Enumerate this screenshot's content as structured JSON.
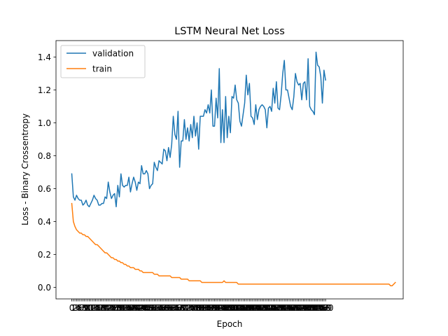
{
  "chart_data": {
    "type": "line",
    "title": "LSTM Neural Net Loss",
    "xlabel": "Epoch",
    "ylabel": "Loss - Binary Crossentropy",
    "xlim": [
      -9.95,
      208.95
    ],
    "ylim": [
      -0.07,
      1.5
    ],
    "yticks": [
      0.0,
      0.2,
      0.4,
      0.6,
      0.8,
      1.0,
      1.2,
      1.4
    ],
    "xticks_note": "one tick per epoch 0-199; labels overlap",
    "grid": false,
    "legend_position": "upper-left",
    "series": [
      {
        "name": "validation",
        "color": "#1f77b4",
        "values": [
          0.69,
          0.55,
          0.53,
          0.56,
          0.54,
          0.53,
          0.53,
          0.5,
          0.51,
          0.53,
          0.5,
          0.49,
          0.51,
          0.53,
          0.56,
          0.54,
          0.53,
          0.5,
          0.5,
          0.51,
          0.51,
          0.55,
          0.54,
          0.64,
          0.58,
          0.54,
          0.56,
          0.57,
          0.49,
          0.62,
          0.55,
          0.69,
          0.62,
          0.61,
          0.62,
          0.62,
          0.67,
          0.58,
          0.63,
          0.67,
          0.64,
          0.59,
          0.64,
          0.63,
          0.74,
          0.69,
          0.69,
          0.71,
          0.69,
          0.6,
          0.62,
          0.63,
          0.76,
          0.73,
          0.71,
          0.77,
          0.76,
          0.75,
          0.84,
          0.83,
          0.77,
          0.85,
          0.79,
          0.87,
          1.04,
          0.93,
          0.9,
          1.07,
          0.73,
          0.89,
          0.89,
          1.02,
          0.9,
          0.97,
          0.89,
          0.99,
          0.91,
          1.04,
          0.92,
          1.0,
          0.84,
          1.04,
          1.04,
          1.04,
          1.08,
          1.06,
          1.11,
          1.06,
          1.2,
          0.98,
          0.98,
          1.15,
          1.03,
          1.33,
          0.88,
          1.08,
          0.88,
          1.16,
          0.91,
          1.04,
          0.94,
          1.16,
          1.15,
          1.23,
          1.14,
          1.12,
          1.01,
          0.98,
          1.05,
          1.12,
          1.29,
          1.17,
          1.24,
          1.04,
          1.03,
          0.99,
          1.11,
          1.02,
          1.08,
          1.1,
          1.11,
          1.1,
          1.08,
          0.97,
          1.09,
          1.1,
          1.07,
          1.21,
          1.12,
          1.25,
          1.09,
          1.08,
          1.17,
          1.3,
          1.38,
          1.2,
          1.2,
          1.15,
          1.1,
          1.08,
          1.16,
          1.3,
          1.25,
          1.23,
          1.24,
          1.14,
          1.24,
          1.25,
          1.14,
          1.39,
          1.1,
          1.08,
          1.07,
          1.05,
          1.43,
          1.35,
          1.34,
          1.28,
          1.12,
          1.32,
          1.26
        ],
        "x_start": 0
      },
      {
        "name": "train",
        "color": "#ff7f0e",
        "values": [
          0.51,
          0.4,
          0.37,
          0.35,
          0.34,
          0.33,
          0.33,
          0.32,
          0.32,
          0.31,
          0.31,
          0.3,
          0.29,
          0.28,
          0.27,
          0.26,
          0.26,
          0.25,
          0.24,
          0.23,
          0.22,
          0.21,
          0.21,
          0.2,
          0.19,
          0.18,
          0.18,
          0.17,
          0.17,
          0.16,
          0.16,
          0.15,
          0.15,
          0.14,
          0.14,
          0.13,
          0.13,
          0.12,
          0.12,
          0.12,
          0.11,
          0.11,
          0.11,
          0.1,
          0.1,
          0.09,
          0.09,
          0.09,
          0.09,
          0.09,
          0.09,
          0.09,
          0.08,
          0.08,
          0.08,
          0.07,
          0.07,
          0.07,
          0.07,
          0.07,
          0.07,
          0.07,
          0.07,
          0.06,
          0.06,
          0.06,
          0.06,
          0.06,
          0.06,
          0.05,
          0.05,
          0.05,
          0.05,
          0.05,
          0.04,
          0.04,
          0.04,
          0.04,
          0.04,
          0.04,
          0.04,
          0.04,
          0.03,
          0.03,
          0.03,
          0.03,
          0.03,
          0.03,
          0.03,
          0.03,
          0.03,
          0.03,
          0.03,
          0.03,
          0.03,
          0.03,
          0.04,
          0.03,
          0.03,
          0.03,
          0.03,
          0.03,
          0.03,
          0.03,
          0.03,
          0.02,
          0.02,
          0.02,
          0.02,
          0.02,
          0.02,
          0.02,
          0.02,
          0.02,
          0.02,
          0.02,
          0.02,
          0.02,
          0.02,
          0.02,
          0.02,
          0.02,
          0.02,
          0.02,
          0.02,
          0.02,
          0.02,
          0.02,
          0.02,
          0.02,
          0.02,
          0.02,
          0.02,
          0.02,
          0.02,
          0.02,
          0.02,
          0.02,
          0.02,
          0.02,
          0.02,
          0.02,
          0.02,
          0.02,
          0.02,
          0.02,
          0.02,
          0.02,
          0.02,
          0.02,
          0.02,
          0.02,
          0.02,
          0.02,
          0.02,
          0.02,
          0.02,
          0.02,
          0.02,
          0.02,
          0.02,
          0.02,
          0.02,
          0.02,
          0.02,
          0.02,
          0.02,
          0.02,
          0.02,
          0.02,
          0.02,
          0.02,
          0.02,
          0.02,
          0.02,
          0.02,
          0.02,
          0.02,
          0.02,
          0.02,
          0.02,
          0.02,
          0.02,
          0.02,
          0.02,
          0.02,
          0.02,
          0.02,
          0.02,
          0.02,
          0.02,
          0.02,
          0.02,
          0.02,
          0.02,
          0.02,
          0.02,
          0.02,
          0.02,
          0.02,
          0.02,
          0.01,
          0.01,
          0.02,
          0.03
        ],
        "x_start": 0
      }
    ]
  }
}
